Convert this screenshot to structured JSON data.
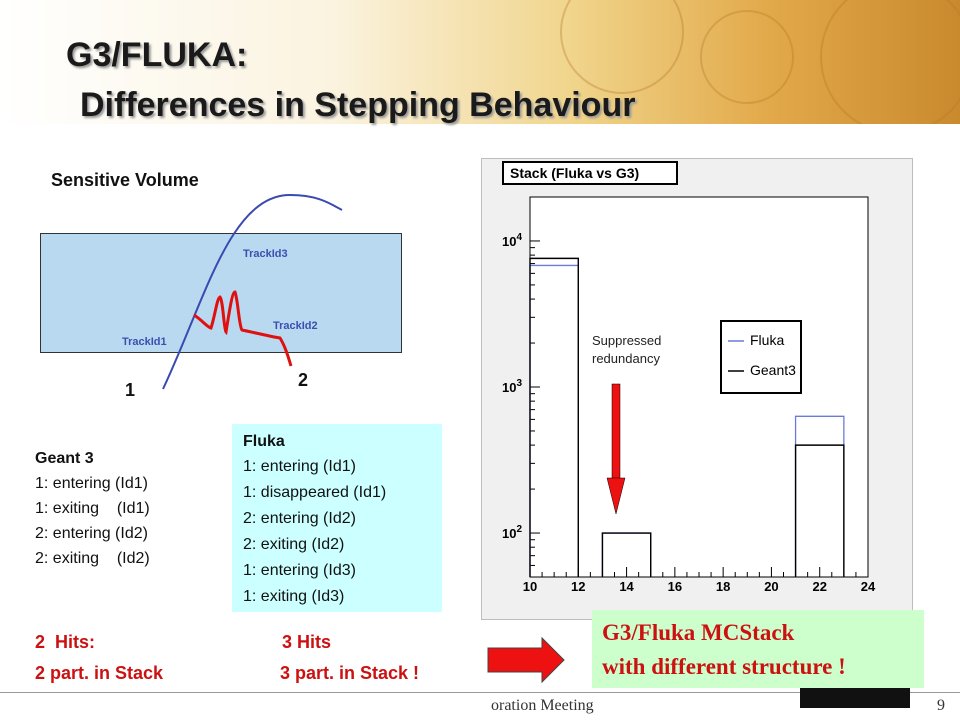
{
  "title": {
    "line1": "G3/FLUKA:",
    "line2": "Differences in Stepping Behaviour"
  },
  "diagram": {
    "heading": "Sensitive Volume",
    "track_labels": [
      "TrackId1",
      "TrackId2",
      "TrackId3"
    ],
    "point_labels": [
      "1",
      "2"
    ]
  },
  "geant3": {
    "header": "Geant 3",
    "lines": [
      "1: entering (Id1)",
      "1: exiting    (Id1)",
      "2: entering (Id2)",
      "2: exiting    (Id2)"
    ]
  },
  "fluka": {
    "header": "Fluka",
    "lines": [
      "1: entering (Id1)",
      "1: disappeared (Id1)",
      "2: entering (Id2)",
      "2: exiting (Id2)",
      "1: entering (Id3)",
      "1: exiting (Id3)"
    ]
  },
  "summary": {
    "g3_hits": "2  Hits:",
    "g3_stack": "2 part. in Stack",
    "fluka_hits": "3 Hits",
    "fluka_stack": "3 part. in Stack !"
  },
  "conclusion": {
    "line1": "G3/Fluka MCStack",
    "line2": "with different structure !"
  },
  "footer": {
    "text": "oration Meeting",
    "page": "9"
  },
  "colors": {
    "fluka": "#6b7bd8",
    "geant3": "#000000",
    "arrow": "#ee1111",
    "volume": "#b8d9f0"
  },
  "chart_data": {
    "type": "bar",
    "title": "Stack (Fluka vs G3)",
    "xlabel": "",
    "ylabel": "",
    "xlim": [
      10,
      24
    ],
    "ylim": [
      50,
      20000
    ],
    "yscale": "log",
    "x_ticks": [
      "10",
      "12",
      "14",
      "16",
      "18",
      "20",
      "22",
      "24"
    ],
    "y_ticks": [
      {
        "base": "10",
        "exp": "2"
      },
      {
        "base": "10",
        "exp": "3"
      },
      {
        "base": "10",
        "exp": "4"
      }
    ],
    "bin_width": 2,
    "series": [
      {
        "name": "Fluka",
        "color": "#6b7bd8",
        "bins": [
          {
            "x": 10,
            "value": 6800
          },
          {
            "x": 13,
            "value": 100
          },
          {
            "x": 21,
            "value": 630
          }
        ]
      },
      {
        "name": "Geant3",
        "color": "#000000",
        "bins": [
          {
            "x": 10,
            "value": 7600
          },
          {
            "x": 13,
            "value": 100
          },
          {
            "x": 21,
            "value": 400
          }
        ]
      }
    ],
    "legend": "right",
    "annotation": "Suppressed redundancy"
  }
}
